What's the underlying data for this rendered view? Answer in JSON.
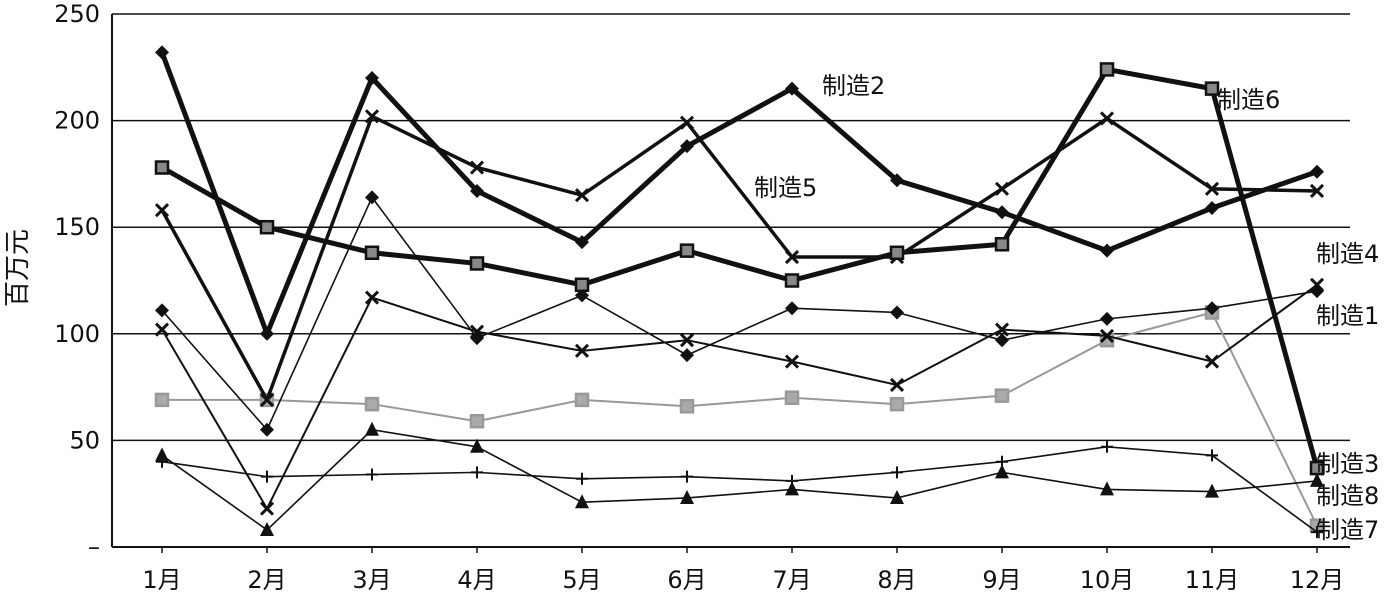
{
  "chart_data": {
    "type": "line",
    "title": "",
    "xlabel": "",
    "ylabel": "百万元",
    "ylim": [
      0,
      250
    ],
    "grid": "horizontal",
    "categories": [
      "1月",
      "2月",
      "3月",
      "4月",
      "5月",
      "6月",
      "7月",
      "8月",
      "9月",
      "10月",
      "11月",
      "12月"
    ],
    "y_ticks": [
      "–",
      "50",
      "100",
      "150",
      "200",
      "250"
    ],
    "y_tick_values": [
      0,
      50,
      100,
      150,
      200,
      250
    ],
    "series": [
      {
        "name": "制造2",
        "color": "#111111",
        "marker": "diamond",
        "values": [
          232,
          100,
          220,
          167,
          143,
          188,
          215,
          172,
          157,
          139,
          159,
          176
        ]
      },
      {
        "name": "制造6",
        "color": "#111111",
        "marker": "square",
        "values": [
          178,
          150,
          138,
          133,
          123,
          139,
          125,
          138,
          142,
          224,
          215,
          37
        ]
      },
      {
        "name": "制造5",
        "color": "#111111",
        "marker": "x",
        "values": [
          158,
          69,
          202,
          178,
          165,
          199,
          136,
          136,
          168,
          201,
          168,
          167
        ]
      },
      {
        "name": "制造4",
        "color": "#111111",
        "marker": "x",
        "values": [
          102,
          18,
          117,
          101,
          92,
          97,
          87,
          76,
          102,
          99,
          87,
          123
        ]
      },
      {
        "name": "制造1",
        "color": "#111111",
        "marker": "diamond",
        "values": [
          111,
          55,
          164,
          98,
          118,
          90,
          112,
          110,
          97,
          107,
          112,
          120
        ]
      },
      {
        "name": "制造7",
        "color": "#999999",
        "marker": "square",
        "values": [
          69,
          69,
          67,
          59,
          69,
          66,
          70,
          67,
          71,
          97,
          110,
          10
        ]
      },
      {
        "name": "制造3",
        "color": "#111111",
        "marker": "plus",
        "values": [
          40,
          33,
          34,
          35,
          32,
          33,
          31,
          35,
          40,
          47,
          43,
          7
        ]
      },
      {
        "name": "制造8",
        "color": "#111111",
        "marker": "triangle",
        "values": [
          43,
          8,
          55,
          47,
          21,
          23,
          27,
          23,
          35,
          27,
          26,
          31
        ]
      }
    ]
  }
}
